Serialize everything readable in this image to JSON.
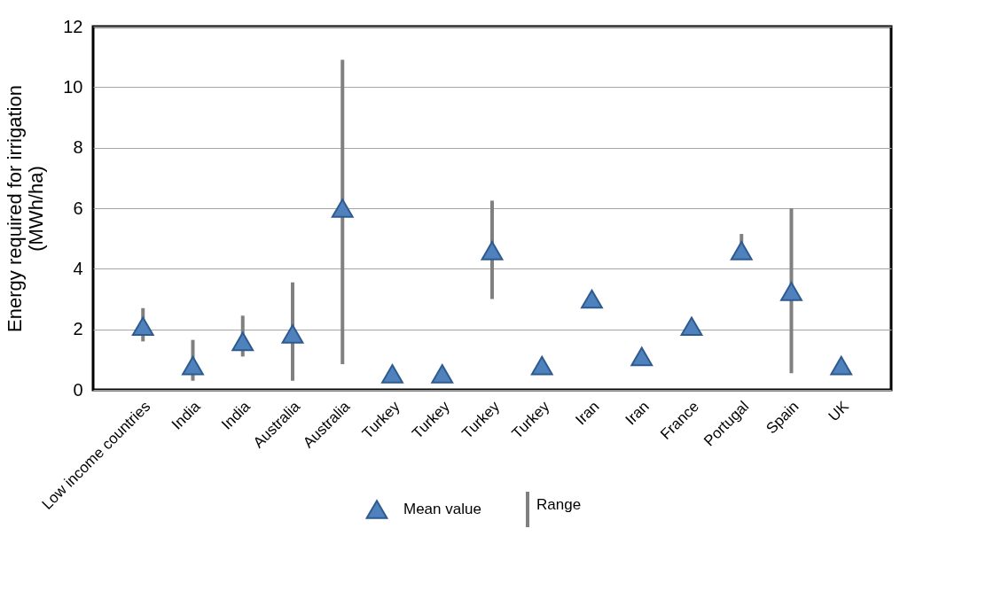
{
  "chart_data": {
    "type": "scatter",
    "categories": [
      "Low income countries",
      "India",
      "India",
      "Australia",
      "Australia",
      "Turkey",
      "Turkey",
      "Turkey",
      "Turkey",
      "Iran",
      "Iran",
      "France",
      "Portugal",
      "Spain",
      "UK"
    ],
    "series": [
      {
        "name": "Mean value",
        "color": "#4f81bd",
        "values": [
          2.1,
          0.8,
          1.6,
          1.85,
          6.0,
          0.53,
          0.53,
          4.6,
          0.8,
          3.0,
          1.1,
          2.1,
          4.6,
          3.25,
          0.8
        ],
        "errors": [
          [
            1.6,
            2.7
          ],
          [
            0.3,
            1.65
          ],
          [
            1.1,
            2.45
          ],
          [
            0.3,
            3.55
          ],
          [
            0.85,
            10.9
          ],
          null,
          null,
          [
            3.0,
            6.25
          ],
          null,
          null,
          null,
          null,
          [
            4.6,
            5.15
          ],
          [
            0.55,
            6.0
          ],
          null
        ]
      }
    ],
    "ylabel": "Energy required for irrigation\n(MWh/ha)",
    "ylim": [
      0,
      12
    ],
    "yticks": [
      0,
      2,
      4,
      6,
      8,
      10,
      12
    ],
    "grid": "y",
    "marker": "triangle",
    "legend": "bottom",
    "annotations": [
      "Range"
    ]
  }
}
